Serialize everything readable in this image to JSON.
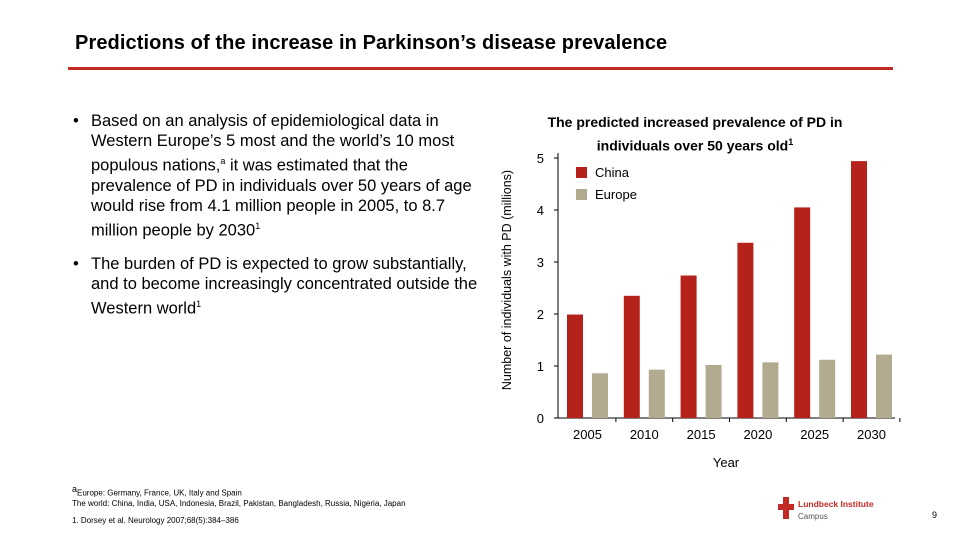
{
  "slide": {
    "title": "Predictions of the increase in Parkinson’s disease prevalence",
    "bullets": [
      {
        "text": "Based on an analysis of epidemiological data in Western Europe’s 5 most and the world’s 10 most populous nations,",
        "sup1": "a",
        "text2": " it was estimated that the prevalence of PD in individuals over 50 years of age would rise from 4.1 million people in 2005, to 8.7 million people by 2030",
        "sup2": "1"
      },
      {
        "text": "The burden of PD is expected to grow substantially, and to become increasingly concentrated outside the Western world",
        "sup1": "1"
      }
    ],
    "bullet_marker": "•",
    "footnotes": {
      "line1_sup": "a",
      "line1": "Europe: Germany, France, UK, Italy and Spain",
      "line2": "The world: China, India, USA, Indonesia, Brazil, Pakistan, Bangladesh, Russia, Nigeria, Japan",
      "reference": "1. Dorsey et al. Neurology 2007;68(5):384–386"
    },
    "logo": {
      "line1": "Lundbeck Institute",
      "line2": "Campus",
      "icon": "red-cross-icon"
    },
    "page_number": "9"
  },
  "colors": {
    "accent": "#c22a25",
    "china": "#b5221c",
    "europe": "#b2ab8f"
  },
  "chart_data": {
    "type": "bar",
    "title": "The predicted increased prevalence of PD in individuals over 50 years old",
    "title_sup": "1",
    "xlabel": "Year",
    "ylabel": "Number of individuals with PD (millions)",
    "categories": [
      "2005",
      "2010",
      "2015",
      "2020",
      "2025",
      "2030"
    ],
    "ylim": [
      0,
      5
    ],
    "yticks": [
      "0",
      "1",
      "2",
      "3",
      "4",
      "5"
    ],
    "series": [
      {
        "name": "China",
        "values": [
          1.99,
          2.35,
          2.74,
          3.37,
          4.05,
          4.94
        ]
      },
      {
        "name": "Europe",
        "values": [
          0.86,
          0.93,
          1.02,
          1.07,
          1.12,
          1.22
        ]
      }
    ],
    "legend_position": "top-left",
    "grid": false
  }
}
